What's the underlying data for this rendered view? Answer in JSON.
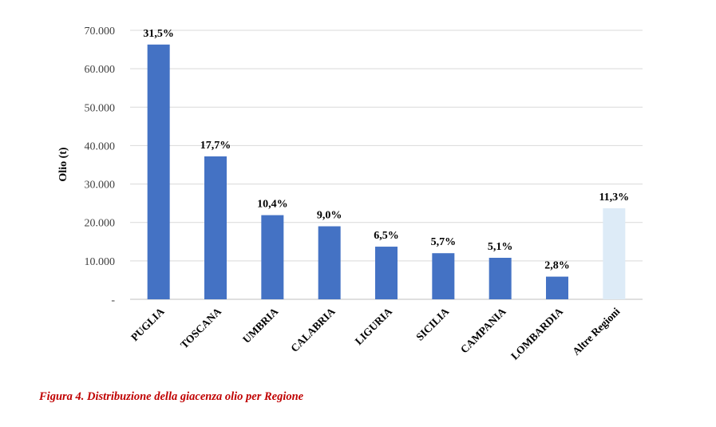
{
  "chart_data": {
    "type": "bar",
    "ylabel": "Olio (t)",
    "ylim": [
      0,
      70000
    ],
    "yticks": [
      0,
      10000,
      20000,
      30000,
      40000,
      50000,
      60000,
      70000
    ],
    "ytick_labels": [
      "-",
      "10.000",
      "20.000",
      "30.000",
      "40.000",
      "50.000",
      "60.000",
      "70.000"
    ],
    "grid": true,
    "categories": [
      "PUGLIA",
      "TOSCANA",
      "UMBRIA",
      "CALABRIA",
      "LIGURIA",
      "SICILIA",
      "CAMPANIA",
      "LOMBARDIA",
      "Altre Regioni"
    ],
    "values": [
      66300,
      37200,
      21900,
      19000,
      13700,
      12000,
      10800,
      5900,
      23700
    ],
    "data_labels": [
      "31,5%",
      "17,7%",
      "10,4%",
      "9,0%",
      "6,5%",
      "5,7%",
      "5,1%",
      "2,8%",
      "11,3%"
    ],
    "colors": [
      "#4472c4",
      "#4472c4",
      "#4472c4",
      "#4472c4",
      "#4472c4",
      "#4472c4",
      "#4472c4",
      "#4472c4",
      "#ddebf7"
    ]
  },
  "caption": "Figura 4. Distribuzione della giacenza olio per Regione"
}
